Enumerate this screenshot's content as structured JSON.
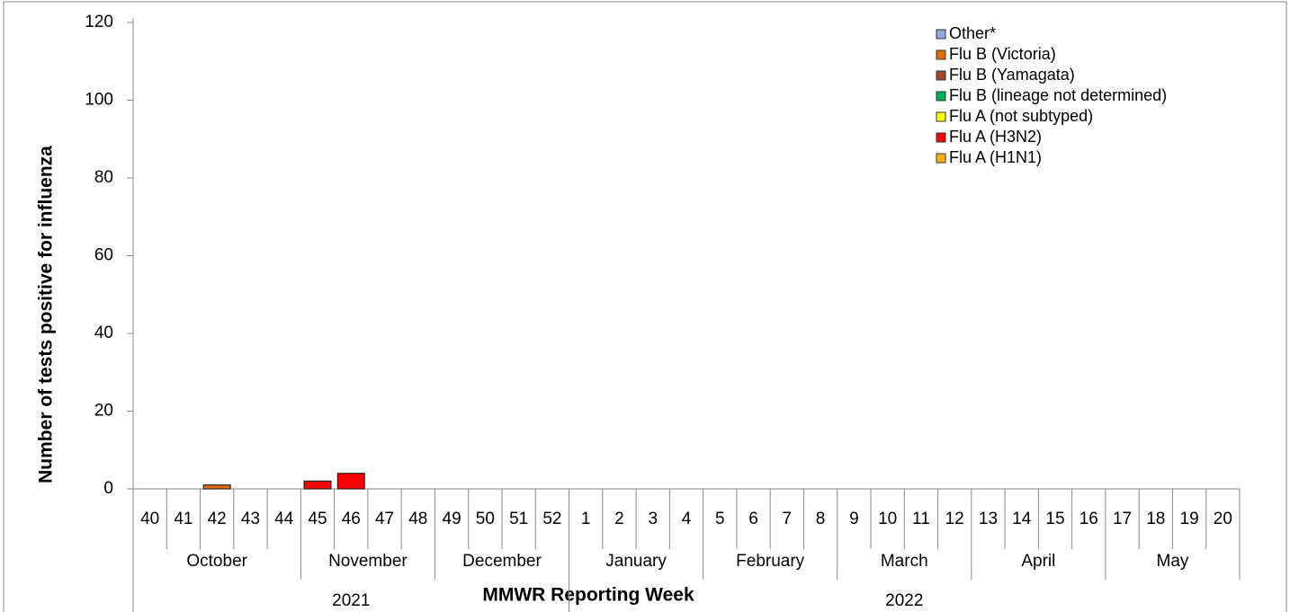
{
  "chart_data": {
    "type": "stacked_bar",
    "y_label": "Number of tests positive for influenza",
    "x_label": "MMWR Reporting Week",
    "categories": [
      "40",
      "41",
      "42",
      "43",
      "44",
      "45",
      "46",
      "47",
      "48",
      "49",
      "50",
      "51",
      "52",
      "1",
      "2",
      "3",
      "4",
      "5",
      "6",
      "7",
      "8",
      "9",
      "10",
      "11",
      "12",
      "13",
      "14",
      "15",
      "16",
      "17",
      "18",
      "19",
      "20"
    ],
    "month_labels": [
      "October",
      null,
      null,
      null,
      null,
      "November",
      null,
      null,
      null,
      "December",
      null,
      null,
      null,
      "January",
      null,
      null,
      null,
      "February",
      null,
      null,
      null,
      "March",
      null,
      null,
      null,
      "April",
      null,
      null,
      null,
      "May",
      null,
      null,
      null
    ],
    "year_labels": [
      "2021",
      null,
      null,
      null,
      null,
      null,
      null,
      null,
      null,
      null,
      null,
      null,
      null,
      "2022",
      null,
      null,
      null,
      null,
      null,
      null,
      null,
      null,
      null,
      null,
      null,
      null,
      null,
      null,
      null,
      null,
      null,
      null,
      null
    ],
    "series": [
      {
        "name": "Flu A (H1N1)",
        "color": "#FFB000",
        "values": [
          0,
          0,
          0,
          0,
          0,
          0,
          0,
          0,
          0,
          0,
          0,
          0,
          0,
          0,
          0,
          0,
          0,
          0,
          0,
          0,
          0,
          0,
          0,
          0,
          0,
          0,
          0,
          0,
          0,
          0,
          0,
          0,
          0
        ]
      },
      {
        "name": "Flu A (H3N2)",
        "color": "#FF0000",
        "values": [
          0,
          0,
          0,
          0,
          0,
          2,
          4,
          0,
          0,
          0,
          0,
          0,
          0,
          0,
          0,
          0,
          0,
          0,
          0,
          0,
          0,
          0,
          0,
          0,
          0,
          0,
          0,
          0,
          0,
          0,
          0,
          0,
          0
        ]
      },
      {
        "name": "Flu A (not subtyped)",
        "color": "#FFFF00",
        "values": [
          0,
          0,
          0,
          0,
          0,
          0,
          0,
          0,
          0,
          0,
          0,
          0,
          0,
          0,
          0,
          0,
          0,
          0,
          0,
          0,
          0,
          0,
          0,
          0,
          0,
          0,
          0,
          0,
          0,
          0,
          0,
          0,
          0
        ]
      },
      {
        "name": "Flu B (lineage not determined)",
        "color": "#00B050",
        "values": [
          0,
          0,
          0,
          0,
          0,
          0,
          0,
          0,
          0,
          0,
          0,
          0,
          0,
          0,
          0,
          0,
          0,
          0,
          0,
          0,
          0,
          0,
          0,
          0,
          0,
          0,
          0,
          0,
          0,
          0,
          0,
          0,
          0
        ]
      },
      {
        "name": "Flu B (Yamagata)",
        "color": "#A5472F",
        "values": [
          0,
          0,
          0,
          0,
          0,
          0,
          0,
          0,
          0,
          0,
          0,
          0,
          0,
          0,
          0,
          0,
          0,
          0,
          0,
          0,
          0,
          0,
          0,
          0,
          0,
          0,
          0,
          0,
          0,
          0,
          0,
          0,
          0
        ]
      },
      {
        "name": "Flu B (Victoria)",
        "color": "#E46C0A",
        "values": [
          0,
          0,
          1,
          0,
          0,
          0,
          0,
          0,
          0,
          0,
          0,
          0,
          0,
          0,
          0,
          0,
          0,
          0,
          0,
          0,
          0,
          0,
          0,
          0,
          0,
          0,
          0,
          0,
          0,
          0,
          0,
          0,
          0
        ]
      },
      {
        "name": "Other*",
        "color": "#8FAADC",
        "values": [
          0,
          0,
          0,
          0,
          0,
          0,
          0,
          0,
          0,
          0,
          0,
          0,
          0,
          0,
          0,
          0,
          0,
          0,
          0,
          0,
          0,
          0,
          0,
          0,
          0,
          0,
          0,
          0,
          0,
          0,
          0,
          0,
          0
        ]
      }
    ],
    "ylim": [
      0,
      120
    ],
    "yticks": [
      0,
      20,
      40,
      60,
      80,
      100,
      120
    ]
  }
}
